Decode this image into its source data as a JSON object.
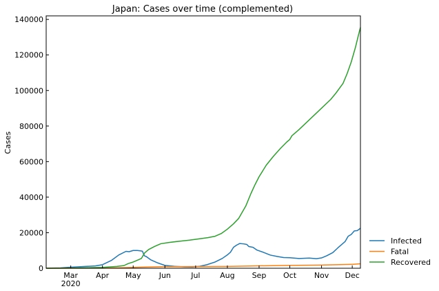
{
  "chart_data": {
    "type": "line",
    "title": "Japan: Cases over time (complemented)",
    "xlabel": "",
    "ylabel": "Cases",
    "ylim": [
      0,
      142000
    ],
    "xlim": [
      "2020-02-06",
      "2020-12-09"
    ],
    "grid": false,
    "legend_position": "outside-right-bottom",
    "x_ticks": [
      {
        "date": "2020-03-01",
        "label": "Mar",
        "sublabel": "2020"
      },
      {
        "date": "2020-04-01",
        "label": "Apr",
        "sublabel": ""
      },
      {
        "date": "2020-05-01",
        "label": "May",
        "sublabel": ""
      },
      {
        "date": "2020-06-01",
        "label": "Jun",
        "sublabel": ""
      },
      {
        "date": "2020-07-01",
        "label": "Jul",
        "sublabel": ""
      },
      {
        "date": "2020-08-01",
        "label": "Aug",
        "sublabel": ""
      },
      {
        "date": "2020-09-01",
        "label": "Sep",
        "sublabel": ""
      },
      {
        "date": "2020-10-01",
        "label": "Oct",
        "sublabel": ""
      },
      {
        "date": "2020-11-01",
        "label": "Nov",
        "sublabel": ""
      },
      {
        "date": "2020-12-01",
        "label": "Dec",
        "sublabel": ""
      }
    ],
    "y_ticks": [
      {
        "value": 0,
        "label": "0"
      },
      {
        "value": 20000,
        "label": "20000"
      },
      {
        "value": 40000,
        "label": "40000"
      },
      {
        "value": 60000,
        "label": "60000"
      },
      {
        "value": 80000,
        "label": "80000"
      },
      {
        "value": 100000,
        "label": "100000"
      },
      {
        "value": 120000,
        "label": "120000"
      },
      {
        "value": 140000,
        "label": "140000"
      }
    ],
    "series": [
      {
        "name": "Infected",
        "color": "#1f77b4",
        "points": [
          [
            "2020-02-06",
            50
          ],
          [
            "2020-02-20",
            200
          ],
          [
            "2020-03-01",
            600
          ],
          [
            "2020-03-15",
            1000
          ],
          [
            "2020-03-25",
            1300
          ],
          [
            "2020-04-01",
            2000
          ],
          [
            "2020-04-10",
            4500
          ],
          [
            "2020-04-17",
            7500
          ],
          [
            "2020-04-24",
            9500
          ],
          [
            "2020-04-27",
            9300
          ],
          [
            "2020-05-01",
            10000
          ],
          [
            "2020-05-05",
            10000
          ],
          [
            "2020-05-08",
            9800
          ],
          [
            "2020-05-10",
            9600
          ],
          [
            "2020-05-12",
            7000
          ],
          [
            "2020-05-14",
            6500
          ],
          [
            "2020-05-18",
            4800
          ],
          [
            "2020-05-25",
            3000
          ],
          [
            "2020-06-01",
            1600
          ],
          [
            "2020-06-10",
            1100
          ],
          [
            "2020-06-20",
            800
          ],
          [
            "2020-06-28",
            750
          ],
          [
            "2020-07-05",
            1100
          ],
          [
            "2020-07-12",
            2000
          ],
          [
            "2020-07-20",
            3500
          ],
          [
            "2020-07-27",
            5500
          ],
          [
            "2020-08-01",
            7500
          ],
          [
            "2020-08-04",
            9000
          ],
          [
            "2020-08-07",
            11800
          ],
          [
            "2020-08-10",
            13000
          ],
          [
            "2020-08-13",
            13900
          ],
          [
            "2020-08-17",
            13700
          ],
          [
            "2020-08-20",
            13400
          ],
          [
            "2020-08-22",
            12200
          ],
          [
            "2020-08-26",
            11800
          ],
          [
            "2020-08-30",
            10200
          ],
          [
            "2020-09-05",
            9000
          ],
          [
            "2020-09-12",
            7400
          ],
          [
            "2020-09-19",
            6600
          ],
          [
            "2020-09-25",
            6000
          ],
          [
            "2020-10-01",
            5900
          ],
          [
            "2020-10-10",
            5500
          ],
          [
            "2020-10-20",
            5700
          ],
          [
            "2020-10-27",
            5400
          ],
          [
            "2020-11-01",
            5800
          ],
          [
            "2020-11-06",
            7000
          ],
          [
            "2020-11-12",
            8800
          ],
          [
            "2020-11-17",
            11500
          ],
          [
            "2020-11-24",
            15000
          ],
          [
            "2020-11-27",
            18000
          ],
          [
            "2020-11-30",
            19000
          ],
          [
            "2020-12-03",
            21000
          ],
          [
            "2020-12-06",
            21200
          ],
          [
            "2020-12-09",
            22500
          ]
        ]
      },
      {
        "name": "Fatal",
        "color": "#ff7f0e",
        "points": [
          [
            "2020-02-06",
            0
          ],
          [
            "2020-03-01",
            10
          ],
          [
            "2020-04-01",
            60
          ],
          [
            "2020-04-20",
            300
          ],
          [
            "2020-05-10",
            620
          ],
          [
            "2020-06-01",
            900
          ],
          [
            "2020-07-01",
            980
          ],
          [
            "2020-08-01",
            1020
          ],
          [
            "2020-09-01",
            1350
          ],
          [
            "2020-10-01",
            1600
          ],
          [
            "2020-11-01",
            1800
          ],
          [
            "2020-12-01",
            2200
          ],
          [
            "2020-12-09",
            2500
          ]
        ]
      },
      {
        "name": "Recovered",
        "color": "#2ca02c",
        "points": [
          [
            "2020-02-06",
            0
          ],
          [
            "2020-03-01",
            100
          ],
          [
            "2020-04-01",
            500
          ],
          [
            "2020-04-15",
            1000
          ],
          [
            "2020-04-22",
            1500
          ],
          [
            "2020-04-26",
            2600
          ],
          [
            "2020-05-01",
            3500
          ],
          [
            "2020-05-05",
            4500
          ],
          [
            "2020-05-09",
            5500
          ],
          [
            "2020-05-12",
            8500
          ],
          [
            "2020-05-16",
            10500
          ],
          [
            "2020-05-22",
            12300
          ],
          [
            "2020-05-28",
            13800
          ],
          [
            "2020-06-05",
            14500
          ],
          [
            "2020-06-15",
            15200
          ],
          [
            "2020-06-25",
            15800
          ],
          [
            "2020-07-05",
            16600
          ],
          [
            "2020-07-13",
            17200
          ],
          [
            "2020-07-20",
            18000
          ],
          [
            "2020-07-26",
            19500
          ],
          [
            "2020-08-01",
            22000
          ],
          [
            "2020-08-07",
            25000
          ],
          [
            "2020-08-12",
            28000
          ],
          [
            "2020-08-19",
            35000
          ],
          [
            "2020-08-24",
            42000
          ],
          [
            "2020-08-28",
            47000
          ],
          [
            "2020-09-01",
            51500
          ],
          [
            "2020-09-08",
            58000
          ],
          [
            "2020-09-15",
            63000
          ],
          [
            "2020-09-22",
            67500
          ],
          [
            "2020-09-28",
            71000
          ],
          [
            "2020-10-01",
            72500
          ],
          [
            "2020-10-03",
            74500
          ],
          [
            "2020-10-10",
            78000
          ],
          [
            "2020-10-20",
            83500
          ],
          [
            "2020-10-31",
            89500
          ],
          [
            "2020-11-10",
            95000
          ],
          [
            "2020-11-15",
            98500
          ],
          [
            "2020-11-22",
            104000
          ],
          [
            "2020-11-26",
            109500
          ],
          [
            "2020-11-30",
            116000
          ],
          [
            "2020-12-04",
            124000
          ],
          [
            "2020-12-07",
            131000
          ],
          [
            "2020-12-09",
            135500
          ]
        ]
      }
    ]
  }
}
